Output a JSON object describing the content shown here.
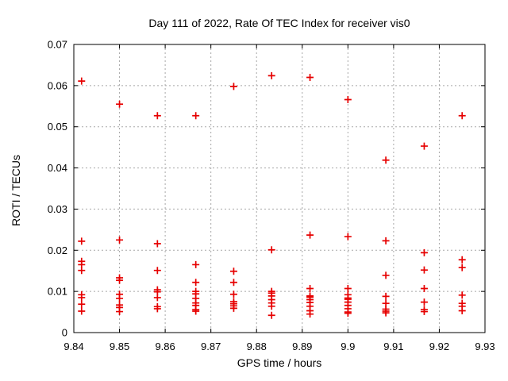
{
  "window": {
    "background": "#ffffff"
  },
  "chart_data": {
    "type": "scatter",
    "title": "Day 111 of 2022, Rate Of TEC Index for receiver vis0",
    "xlabel": "GPS time / hours",
    "ylabel": "ROTI / TECUs",
    "xlim": [
      9.84,
      9.93
    ],
    "ylim": [
      0,
      0.07
    ],
    "xtick_values": [
      9.84,
      9.85,
      9.86,
      9.87,
      9.88,
      9.89,
      9.9,
      9.91,
      9.92,
      9.93
    ],
    "xtick_labels": [
      "9.84",
      "9.85",
      "9.86",
      "9.87",
      "9.88",
      "9.89",
      "9.9",
      "9.91",
      "9.92",
      "9.93"
    ],
    "ytick_values": [
      0,
      0.01,
      0.02,
      0.03,
      0.04,
      0.05,
      0.06,
      0.07
    ],
    "ytick_labels": [
      "0",
      "0.01",
      "0.02",
      "0.03",
      "0.04",
      "0.05",
      "0.06",
      "0.07"
    ],
    "grid": true,
    "legend_position": "none",
    "marker": {
      "shape": "plus",
      "color": "#e60000",
      "size": 9
    },
    "grid_color": "#a8a8a8",
    "border_color": "#000000",
    "series": [
      {
        "name": "ROTI",
        "clusters": [
          {
            "t": 9.8417,
            "roti": [
              0.0611,
              0.0222,
              0.0173,
              0.0165,
              0.0151,
              0.0092,
              0.0085,
              0.0069,
              0.0052
            ]
          },
          {
            "t": 9.85,
            "roti": [
              0.0555,
              0.0225,
              0.0133,
              0.0127,
              0.0093,
              0.0083,
              0.0067,
              0.0061,
              0.0051
            ]
          },
          {
            "t": 9.8583,
            "roti": [
              0.0527,
              0.0216,
              0.0151,
              0.0104,
              0.0099,
              0.0085,
              0.0063,
              0.0058
            ]
          },
          {
            "t": 9.8667,
            "roti": [
              0.0527,
              0.0165,
              0.0122,
              0.01,
              0.0094,
              0.0083,
              0.0072,
              0.0066,
              0.0056,
              0.0052
            ]
          },
          {
            "t": 9.875,
            "roti": [
              0.0598,
              0.0149,
              0.0122,
              0.0093,
              0.0075,
              0.007,
              0.0065,
              0.0059
            ]
          },
          {
            "t": 9.8833,
            "roti": [
              0.0624,
              0.0201,
              0.01,
              0.0096,
              0.0089,
              0.008,
              0.0072,
              0.0064,
              0.0042
            ]
          },
          {
            "t": 9.8917,
            "roti": [
              0.062,
              0.0237,
              0.0107,
              0.0089,
              0.0086,
              0.008,
              0.0073,
              0.0064,
              0.0053,
              0.0045
            ]
          },
          {
            "t": 9.9,
            "roti": [
              0.0566,
              0.0233,
              0.0107,
              0.0092,
              0.0084,
              0.0081,
              0.0074,
              0.0066,
              0.0058,
              0.005,
              0.0047
            ]
          },
          {
            "t": 9.9083,
            "roti": [
              0.0419,
              0.0223,
              0.0139,
              0.0088,
              0.0071,
              0.0057,
              0.0052,
              0.0048
            ]
          },
          {
            "t": 9.9167,
            "roti": [
              0.0453,
              0.0194,
              0.0152,
              0.0107,
              0.0074,
              0.0056,
              0.0051
            ]
          },
          {
            "t": 9.925,
            "roti": [
              0.0527,
              0.0177,
              0.0158,
              0.0091,
              0.0071,
              0.0064,
              0.0053
            ]
          }
        ]
      }
    ]
  }
}
